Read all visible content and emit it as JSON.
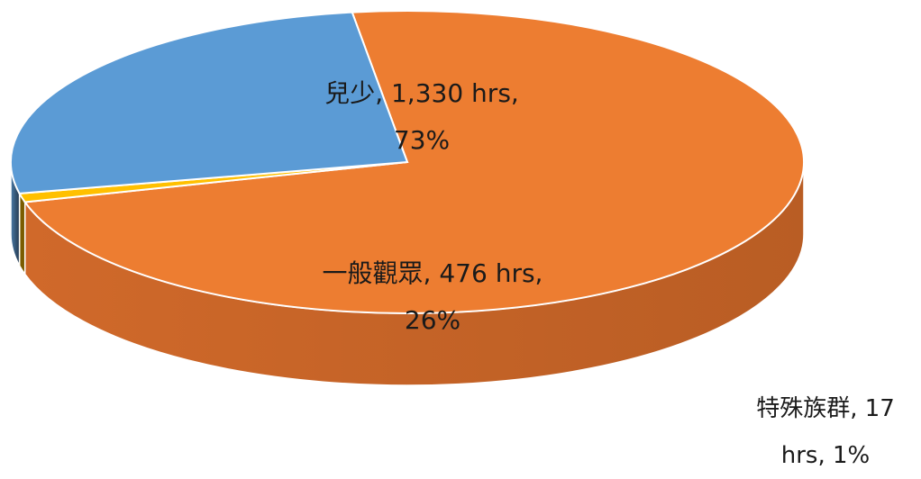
{
  "chart_data": {
    "type": "pie",
    "style": "3d",
    "unit": "hrs",
    "slices": [
      {
        "name": "兒少",
        "value": 1330,
        "percent": 73,
        "color": "#ED7D31",
        "label_line1": "兒少, 1,330 hrs,",
        "label_line2": "73%"
      },
      {
        "name": "特殊族群",
        "value": 17,
        "percent": 1,
        "color": "#FFC000",
        "label_line1": "特殊族群, 17",
        "label_line2": "hrs, 1%"
      },
      {
        "name": "一般觀眾",
        "value": 476,
        "percent": 26,
        "color": "#5B9BD5",
        "label_line1": "一般觀眾, 476 hrs,",
        "label_line2": "26%"
      }
    ]
  }
}
